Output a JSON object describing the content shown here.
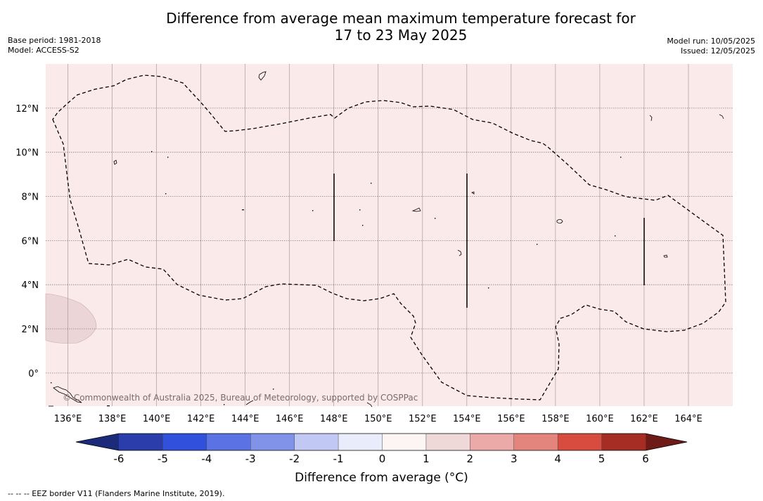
{
  "title": {
    "line1": "Difference from average mean maximum temperature forecast for",
    "line2": "17 to 23 May 2025"
  },
  "meta_left": {
    "base_period": "Base period: 1981-2018",
    "model": "Model: ACCESS-S2"
  },
  "meta_right": {
    "model_run": "Model run: 10/05/2025",
    "issued": "Issued: 12/05/2025"
  },
  "map": {
    "lon_labels": [
      "136°E",
      "138°E",
      "140°E",
      "142°E",
      "144°E",
      "146°E",
      "148°E",
      "150°E",
      "152°E",
      "154°E",
      "156°E",
      "158°E",
      "160°E",
      "162°E",
      "164°E"
    ],
    "lon_values": [
      136,
      138,
      140,
      142,
      144,
      146,
      148,
      150,
      152,
      154,
      156,
      158,
      160,
      162,
      164
    ],
    "lat_labels": [
      "12°N",
      "10°N",
      "8°N",
      "6°N",
      "4°N",
      "2°N",
      "0°"
    ],
    "lat_values": [
      12,
      10,
      8,
      6,
      4,
      2,
      0
    ],
    "lon_range": [
      135,
      166
    ],
    "lat_range": [
      -1.5,
      14
    ],
    "background_category": "0 to 1",
    "background_color": "#fbeaea",
    "warm_patch_color": "#ecd5d7",
    "copyright": "© Commonwealth of Australia 2025, Bureau of Meteorology, supported by COSPPac"
  },
  "colorbar": {
    "tick_labels": [
      "-6",
      "-5",
      "-4",
      "-3",
      "-2",
      "-1",
      "0",
      "1",
      "2",
      "3",
      "4",
      "5",
      "6"
    ],
    "colors": [
      "#2a3dab",
      "#3150dc",
      "#5a72e3",
      "#8193e9",
      "#c0c8f3",
      "#e9ecfb",
      "#fdf4f4",
      "#eed8d8",
      "#ebaaa8",
      "#e4857d",
      "#d84c40",
      "#a52d24"
    ],
    "under_color": "#1c2a7a",
    "over_color": "#6e1a17",
    "label": "Difference from average (°C)"
  },
  "footnote": "--  --  -- EEZ border V11 (Flanders Marine Institute, 2019)."
}
